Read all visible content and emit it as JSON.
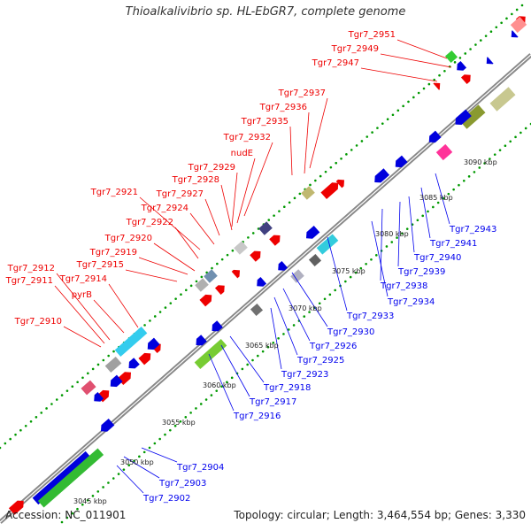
{
  "title": "Thioalkalivibrio sp. HL-EbGR7, complete genome",
  "footer": {
    "accession": "Accession: NC_011901",
    "summary": "Topology: circular; Length: 3,464,554 bp; Genes: 3,330"
  },
  "colors": {
    "forward_label": "#ee0000",
    "reverse_label": "#0000ee",
    "forward_gene": "#ee0000",
    "reverse_gene": "#0000dd",
    "backbone": "#888888",
    "dots": "#009900"
  },
  "scale_labels": [
    "3045 kbp",
    "3050 kbp",
    "3055 kbp",
    "3060 kbp",
    "3065 kbp",
    "3070 kbp",
    "3075 kbp",
    "3080 kbp",
    "3085 kbp",
    "3090 kbp"
  ],
  "forward_labels": [
    "Tgr7_2951",
    "Tgr7_2949",
    "Tgr7_2947",
    "Tgr7_2937",
    "Tgr7_2936",
    "Tgr7_2935",
    "Tgr7_2932",
    "nudE",
    "Tgr7_2929",
    "Tgr7_2928",
    "Tgr7_2927",
    "Tgr7_2921",
    "Tgr7_2924",
    "Tgr7_2922",
    "Tgr7_2920",
    "Tgr7_2919",
    "Tgr7_2915",
    "Tgr7_2912",
    "Tgr7_2911",
    "Tgr7_2914",
    "pyrB",
    "Tgr7_2910"
  ],
  "reverse_labels": [
    "Tgr7_2943",
    "Tgr7_2941",
    "Tgr7_2940",
    "Tgr7_2939",
    "Tgr7_2938",
    "Tgr7_2934",
    "Tgr7_2933",
    "Tgr7_2930",
    "Tgr7_2926",
    "Tgr7_2925",
    "Tgr7_2923",
    "Tgr7_2918",
    "Tgr7_2917",
    "Tgr7_2916",
    "Tgr7_2904",
    "Tgr7_2903",
    "Tgr7_2902"
  ]
}
